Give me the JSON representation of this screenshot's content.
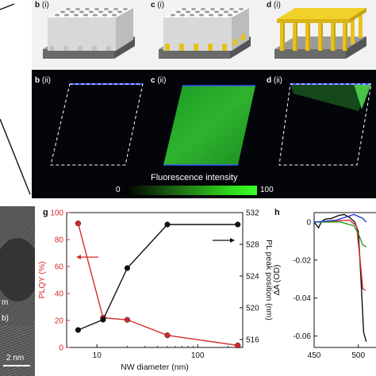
{
  "top_row": [
    {
      "letter": "b",
      "sub": " (i)"
    },
    {
      "letter": "c",
      "sub": " (i)"
    },
    {
      "letter": "d",
      "sub": " (i)"
    }
  ],
  "fluorescence_row": [
    {
      "letter": "b",
      "sub": " (ii)"
    },
    {
      "letter": "c",
      "sub": " (ii)"
    },
    {
      "letter": "d",
      "sub": " (ii)"
    }
  ],
  "colorbar": {
    "title": "Fluorescence intensity",
    "min": "0",
    "max": "100"
  },
  "micrograph": {
    "scale_label": "2 nm",
    "side_letters": [
      "m",
      "b)"
    ]
  },
  "panel_g": {
    "letter": "g"
  },
  "panel_h": {
    "letter": "h"
  },
  "chart_data": [
    {
      "type": "line",
      "panel": "g",
      "xlabel": "NW diameter (nm)",
      "xscale": "log",
      "xlim": [
        5,
        280
      ],
      "xticks": [
        10,
        100
      ],
      "ylabel": "PLQY (%)",
      "ylim": [
        0,
        100
      ],
      "yticks": [
        0,
        20,
        40,
        60,
        80,
        100
      ],
      "y2label": "PL peak position (nm)",
      "y2lim": [
        515,
        532
      ],
      "y2ticks": [
        516,
        520,
        524,
        528,
        532
      ],
      "series": [
        {
          "axis": "left",
          "color": "#d42a2a",
          "x": [
            6.5,
            11.5,
            20,
            50,
            250
          ],
          "y": [
            92,
            22,
            20.5,
            9,
            1.5
          ]
        },
        {
          "axis": "right",
          "color": "#111111",
          "x": [
            6.5,
            11.5,
            20,
            50,
            250
          ],
          "y": [
            517.2,
            518.5,
            525,
            530.5,
            530.5
          ]
        }
      ]
    },
    {
      "type": "line",
      "panel": "h",
      "xlabel": "",
      "xlim": [
        450,
        520
      ],
      "xticks": [
        450,
        500
      ],
      "ylabel": "ΔA (OD)",
      "ylim": [
        -0.066,
        0.005
      ],
      "yticks": [
        0,
        -0.02,
        -0.04,
        -0.06
      ],
      "series": [
        {
          "color": "#111111",
          "x": [
            450,
            455,
            458,
            462,
            470,
            478,
            484,
            490,
            496,
            500,
            503,
            506,
            509
          ],
          "y": [
            0.0,
            -0.003,
            0.0,
            0.0015,
            0.002,
            0.0035,
            0.004,
            0.0025,
            0.0,
            -0.005,
            -0.03,
            -0.058,
            -0.063
          ]
        },
        {
          "color": "#d42a2a",
          "x": [
            450,
            470,
            490,
            498,
            502,
            505,
            508
          ],
          "y": [
            0.0,
            0.0005,
            0.001,
            -0.002,
            -0.02,
            -0.035,
            -0.036
          ]
        },
        {
          "color": "#2a9a2a",
          "x": [
            450,
            480,
            495,
            500,
            505,
            509
          ],
          "y": [
            0.0,
            0.0,
            -0.002,
            -0.006,
            -0.012,
            -0.013
          ]
        },
        {
          "color": "#2a3ad4",
          "x": [
            450,
            475,
            495,
            505,
            509
          ],
          "y": [
            0.0,
            0.001,
            0.004,
            0.002,
            0.0
          ]
        }
      ]
    }
  ]
}
